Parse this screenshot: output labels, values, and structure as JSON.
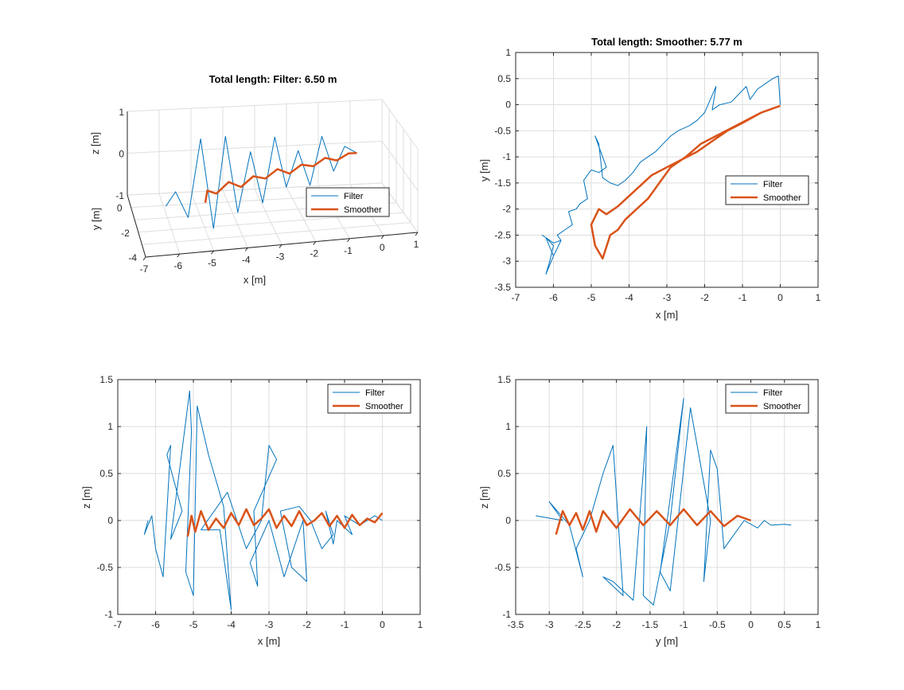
{
  "colors": {
    "filter": "#0072BD",
    "smoother": "#D95319"
  },
  "chart_data": [
    {
      "type": "line3d",
      "title": "Total length: Filter: 6.50 m",
      "xlabel": "x [m]",
      "ylabel": "y [m]",
      "zlabel": "z [m]",
      "xticks": [
        "-7",
        "-6",
        "-5",
        "-4",
        "-3",
        "-2",
        "-1",
        "0",
        "1"
      ],
      "yticks": [
        "0",
        "-2",
        "-4"
      ],
      "zticks": [
        "1",
        "0",
        "-1"
      ],
      "legend": [
        "Filter",
        "Smoother"
      ],
      "legend_location": "right",
      "series": [
        {
          "name": "Filter",
          "x": [
            0,
            -0.4,
            -0.8,
            -1.2,
            -1.6,
            -2.0,
            -2.4,
            -2.8,
            -3.2,
            -3.6,
            -4.0,
            -4.4,
            -4.8,
            -5.2,
            -5.6,
            -6.0,
            -6.3
          ],
          "y": [
            0,
            -0.1,
            -0.4,
            -0.6,
            -0.8,
            -1.0,
            -1.2,
            -1.5,
            -1.7,
            -1.9,
            -2.0,
            -2.2,
            -2.5,
            -2.6,
            -2.8,
            -3.0,
            -3.1
          ],
          "z": [
            0,
            0.2,
            -0.3,
            0.6,
            -0.5,
            0.4,
            -0.4,
            0.9,
            -0.6,
            0.7,
            -0.7,
            1.2,
            -0.9,
            1.3,
            -0.5,
            0.2,
            -0.1
          ]
        },
        {
          "name": "Smoother",
          "x": [
            0,
            -0.3,
            -0.7,
            -1.1,
            -1.5,
            -1.9,
            -2.3,
            -2.7,
            -3.1,
            -3.5,
            -3.9,
            -4.3,
            -4.7,
            -5.0,
            -5.1
          ],
          "y": [
            0,
            -0.2,
            -0.4,
            -0.6,
            -0.8,
            -1.0,
            -1.2,
            -1.4,
            -1.6,
            -1.8,
            -2.0,
            -2.2,
            -2.4,
            -2.6,
            -2.9
          ],
          "z": [
            0,
            0.05,
            -0.05,
            0.08,
            -0.05,
            0.06,
            -0.08,
            0.1,
            -0.05,
            0.08,
            -0.1,
            0.1,
            -0.1,
            0.05,
            -0.15
          ]
        }
      ]
    },
    {
      "type": "line",
      "title": "Total length: Smoother: 5.77 m",
      "xlabel": "x [m]",
      "ylabel": "y [m]",
      "xlim": [
        -7,
        1
      ],
      "ylim": [
        -3.5,
        1
      ],
      "xticks": [
        -7,
        -6,
        -5,
        -4,
        -3,
        -2,
        -1,
        0,
        1
      ],
      "yticks": [
        -3.5,
        -3,
        -2.5,
        -2,
        -1.5,
        -1,
        -0.5,
        0,
        0.5,
        1
      ],
      "legend": [
        "Filter",
        "Smoother"
      ],
      "legend_location": "right",
      "series": [
        {
          "name": "Filter",
          "x": [
            0,
            -0.05,
            -0.2,
            -0.4,
            -0.6,
            -0.8,
            -0.9,
            -1.1,
            -1.3,
            -1.6,
            -1.8,
            -1.7,
            -2.0,
            -2.2,
            -2.4,
            -2.7,
            -2.9,
            -3.1,
            -3.3,
            -3.5,
            -3.7,
            -3.9,
            -4.1,
            -4.3,
            -4.5,
            -4.7,
            -4.8,
            -4.9,
            -4.6,
            -4.8,
            -5.0,
            -5.2,
            -5.1,
            -5.3,
            -5.4,
            -5.6,
            -5.5,
            -5.7,
            -5.9,
            -5.8,
            -6.0,
            -6.2,
            -6.0,
            -6.1,
            -6.2,
            -6.0,
            -5.8,
            -6.0,
            -6.3,
            -6.2
          ],
          "y": [
            0,
            0.55,
            0.5,
            0.4,
            0.3,
            0.1,
            0.35,
            0.2,
            0.05,
            0.0,
            -0.1,
            0.35,
            -0.15,
            -0.3,
            -0.4,
            -0.5,
            -0.6,
            -0.75,
            -0.9,
            -1.0,
            -1.1,
            -1.3,
            -1.45,
            -1.55,
            -1.5,
            -1.4,
            -0.75,
            -0.6,
            -1.2,
            -1.3,
            -1.25,
            -1.45,
            -1.8,
            -1.9,
            -2.0,
            -2.05,
            -2.3,
            -2.4,
            -2.5,
            -2.6,
            -2.9,
            -2.55,
            -2.7,
            -3.0,
            -3.25,
            -2.9,
            -2.6,
            -2.65,
            -2.5,
            -2.55
          ]
        },
        {
          "name": "Smoother",
          "x": [
            0,
            -0.5,
            -1.0,
            -1.4,
            -1.8,
            -2.2,
            -2.6,
            -3.0,
            -3.4,
            -3.7,
            -4.0,
            -4.3,
            -4.6,
            -4.8,
            -5.0,
            -4.9,
            -4.7,
            -4.5,
            -4.3,
            -4.1,
            -3.8,
            -3.5,
            -3.2,
            -2.9,
            -2.5,
            -2.1,
            -1.7,
            -1.3,
            -0.9,
            -0.5,
            0
          ],
          "y": [
            -0.02,
            -0.15,
            -0.35,
            -0.5,
            -0.7,
            -0.9,
            -1.05,
            -1.2,
            -1.35,
            -1.55,
            -1.75,
            -1.95,
            -2.1,
            -2.0,
            -2.3,
            -2.7,
            -2.95,
            -2.5,
            -2.4,
            -2.2,
            -2.0,
            -1.8,
            -1.5,
            -1.2,
            -1.0,
            -0.75,
            -0.6,
            -0.45,
            -0.3,
            -0.15,
            -0.02
          ]
        }
      ]
    },
    {
      "type": "line",
      "xlabel": "x [m]",
      "ylabel": "z [m]",
      "xlim": [
        -7,
        1
      ],
      "ylim": [
        -1,
        1.5
      ],
      "xticks": [
        -7,
        -6,
        -5,
        -4,
        -3,
        -2,
        -1,
        0,
        1
      ],
      "yticks": [
        -1,
        -0.5,
        0,
        0.5,
        1,
        1.5
      ],
      "legend": [
        "Filter",
        "Smoother"
      ],
      "legend_location": "top-right",
      "series": [
        {
          "name": "Filter",
          "x": [
            -6.2,
            -6.3,
            -6.1,
            -6.0,
            -5.8,
            -5.6,
            -5.7,
            -5.3,
            -5.6,
            -5.1,
            -5.05,
            -5.2,
            -5.0,
            -4.9,
            -4.6,
            -4.2,
            -4.0,
            -4.3,
            -4.8,
            -4.1,
            -3.6,
            -3.2,
            -3.0,
            -2.8,
            -3.4,
            -3.3,
            -3.5,
            -3.0,
            -2.6,
            -2.1,
            -2.0,
            -2.4,
            -2.7,
            -2.2,
            -1.9,
            -1.6,
            -1.3,
            -1.5,
            -1.3,
            -1.2,
            -0.8,
            -1.0,
            -0.6,
            -0.4,
            -0.2,
            0
          ],
          "x_note": "",
          "y": [
            0.0,
            -0.15,
            0.05,
            -0.3,
            -0.6,
            0.8,
            0.7,
            0.1,
            -0.2,
            1.38,
            0.95,
            -0.55,
            -0.8,
            1.22,
            0.7,
            0.15,
            -0.95,
            -0.1,
            -0.1,
            0.3,
            -0.3,
            0.0,
            0.8,
            0.65,
            0.1,
            -0.7,
            -0.45,
            0.0,
            -0.6,
            0.0,
            -0.65,
            -0.5,
            0.1,
            0.15,
            0.0,
            -0.3,
            -0.15,
            0.1,
            -0.25,
            0.0,
            -0.15,
            0.05,
            -0.05,
            0.0,
            0.05,
            0.0
          ]
        },
        {
          "name": "Smoother",
          "x": [
            -5.15,
            -5.05,
            -4.95,
            -4.8,
            -4.6,
            -4.4,
            -4.2,
            -4.0,
            -3.8,
            -3.6,
            -3.4,
            -3.2,
            -3.0,
            -2.8,
            -2.6,
            -2.4,
            -2.2,
            -2.0,
            -1.8,
            -1.6,
            -1.4,
            -1.2,
            -1.0,
            -0.8,
            -0.6,
            -0.4,
            -0.2,
            0
          ],
          "y": [
            -0.17,
            0.05,
            -0.12,
            0.1,
            -0.1,
            0.02,
            -0.08,
            0.08,
            -0.05,
            0.12,
            -0.05,
            0.02,
            0.12,
            -0.08,
            0.05,
            -0.06,
            0.1,
            -0.05,
            0.0,
            0.08,
            -0.06,
            0.05,
            -0.08,
            0.06,
            -0.05,
            0.02,
            -0.02,
            0.08
          ]
        }
      ]
    },
    {
      "type": "line",
      "xlabel": "y [m]",
      "ylabel": "z [m]",
      "xlim": [
        -3.5,
        1
      ],
      "ylim": [
        -1,
        1.5
      ],
      "xticks": [
        -3.5,
        -3,
        -2.5,
        -2,
        -1.5,
        -1,
        -0.5,
        0,
        0.5,
        1
      ],
      "yticks": [
        -1,
        -0.5,
        0,
        0.5,
        1,
        1.5
      ],
      "legend": [
        "Filter",
        "Smoother"
      ],
      "legend_location": "top-right",
      "series": [
        {
          "name": "Filter",
          "x": [
            -3.2,
            -2.8,
            -3.0,
            -2.7,
            -2.5,
            -2.6,
            -2.4,
            -2.2,
            -2.05,
            -1.9,
            -2.2,
            -2.05,
            -1.75,
            -1.55,
            -1.6,
            -1.45,
            -1.2,
            -1.0,
            -1.35,
            -1.2,
            -0.9,
            -0.6,
            -0.7,
            -0.6,
            -0.5,
            -0.4,
            -0.3,
            -0.1,
            0.1,
            0.2,
            0.3,
            0.5,
            0.6
          ],
          "x_note": "",
          "y": [
            0.05,
            0.0,
            0.2,
            -0.05,
            -0.6,
            -0.3,
            0.0,
            0.5,
            0.8,
            -0.8,
            -0.6,
            -0.65,
            -0.85,
            1.0,
            -0.8,
            -0.9,
            0.0,
            1.3,
            -0.55,
            -0.75,
            1.2,
            0.0,
            -0.65,
            0.75,
            0.55,
            -0.3,
            -0.2,
            0.0,
            -0.08,
            0.0,
            -0.05,
            -0.04,
            -0.05
          ]
        },
        {
          "name": "Smoother",
          "x": [
            -2.9,
            -2.8,
            -2.7,
            -2.6,
            -2.5,
            -2.4,
            -2.3,
            -2.2,
            -2.0,
            -1.8,
            -1.6,
            -1.4,
            -1.2,
            -1.0,
            -0.8,
            -0.6,
            -0.4,
            -0.2,
            0
          ],
          "y": [
            -0.15,
            0.1,
            -0.05,
            0.08,
            -0.1,
            0.1,
            -0.12,
            0.1,
            -0.08,
            0.12,
            -0.05,
            0.1,
            -0.05,
            0.12,
            -0.05,
            0.1,
            -0.06,
            0.05,
            0.0
          ]
        }
      ]
    }
  ]
}
